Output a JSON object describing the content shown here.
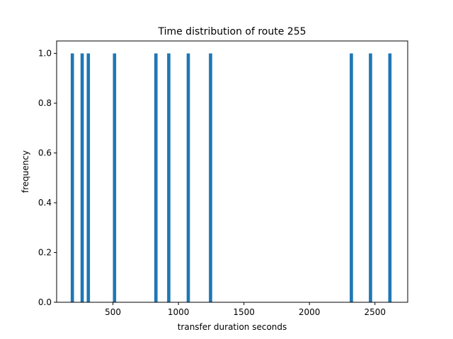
{
  "chart_data": {
    "type": "bar",
    "title": "Time distribution of route 255",
    "xlabel": "transfer duration seconds",
    "ylabel": "frequency",
    "xlim": [
      70,
      2750
    ],
    "ylim": [
      0,
      1.05
    ],
    "xticks": [
      500,
      1000,
      1500,
      2000,
      2500
    ],
    "yticks": [
      0.0,
      0.2,
      0.4,
      0.6,
      0.8,
      1.0
    ],
    "ytick_labels": [
      "0.0",
      "0.2",
      "0.4",
      "0.6",
      "0.8",
      "1.0"
    ],
    "bin_width": 25,
    "bar_color": "#1f77b4",
    "bars": [
      {
        "x": 190,
        "value": 1.0
      },
      {
        "x": 265,
        "value": 1.0
      },
      {
        "x": 312,
        "value": 1.0
      },
      {
        "x": 512,
        "value": 1.0
      },
      {
        "x": 828,
        "value": 1.0
      },
      {
        "x": 926,
        "value": 1.0
      },
      {
        "x": 1075,
        "value": 1.0
      },
      {
        "x": 1245,
        "value": 1.0
      },
      {
        "x": 2320,
        "value": 1.0
      },
      {
        "x": 2466,
        "value": 1.0
      },
      {
        "x": 2614,
        "value": 1.0
      }
    ]
  }
}
